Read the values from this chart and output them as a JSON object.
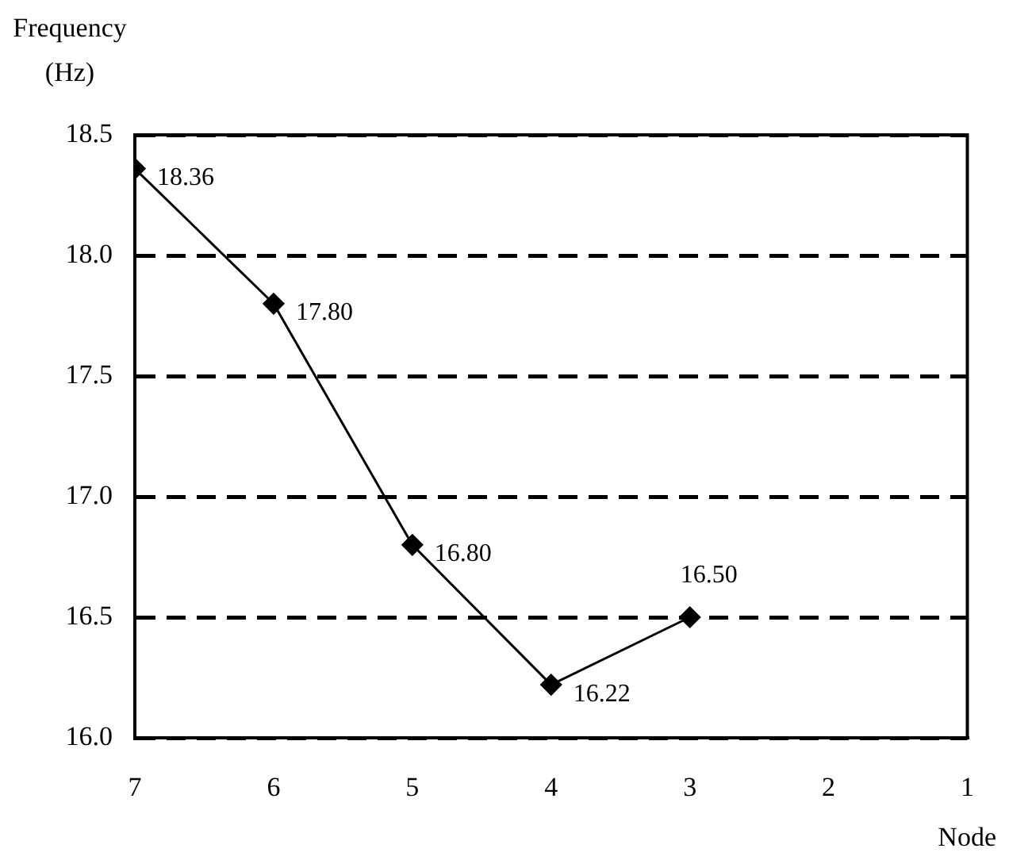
{
  "chart_data": {
    "type": "line",
    "xlabel": "Node",
    "ylabel": "Frequency (Hz)",
    "x": [
      7,
      6,
      5,
      4,
      3
    ],
    "series": [
      {
        "color": "#000000",
        "values": [
          18.36,
          17.8,
          16.8,
          16.22,
          16.5
        ],
        "value_labels": [
          "18.36",
          "17.80",
          "16.80",
          "16.22",
          "16.50"
        ]
      }
    ],
    "xlim": [
      7,
      1
    ],
    "xticks": [
      7,
      6,
      5,
      4,
      3,
      2,
      1
    ],
    "ylim": [
      16,
      18.5
    ],
    "yticks": [
      {
        "value": 16,
        "label": "16.0"
      },
      {
        "value": 16.5,
        "label": "16.5"
      },
      {
        "value": 17,
        "label": "17.0"
      },
      {
        "value": 17.5,
        "label": "17.5"
      },
      {
        "value": 18,
        "label": "18.0"
      },
      {
        "value": 18.5,
        "label": "18.5"
      }
    ],
    "grid": "y",
    "marker": "diamond",
    "line_style": "solid"
  }
}
